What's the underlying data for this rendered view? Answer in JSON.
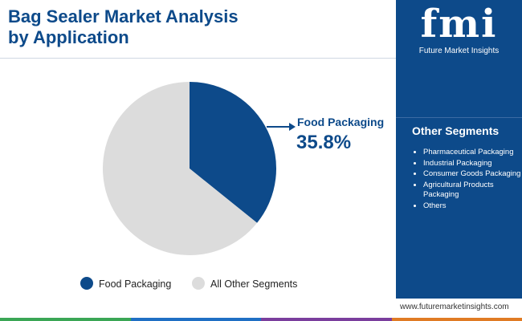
{
  "chart_data": {
    "type": "pie",
    "title": "Bag Sealer Market Analysis by Application",
    "categories": [
      "Food Packaging",
      "All Other Segments"
    ],
    "values": [
      35.8,
      64.2
    ],
    "value_labels": [
      "35.8%",
      null
    ],
    "colors": [
      "#0d4a8a",
      "#dcdcdc"
    ]
  },
  "sidebar": {
    "logo": "fmi",
    "brand": "Future Market Insights",
    "heading": "Other Segments",
    "items": [
      "Pharmaceutical Packaging",
      "Industrial Packaging",
      "Consumer Goods Packaging",
      "Agricultural Products Packaging",
      "Others"
    ],
    "website": "www.futuremarketinsights.com"
  }
}
